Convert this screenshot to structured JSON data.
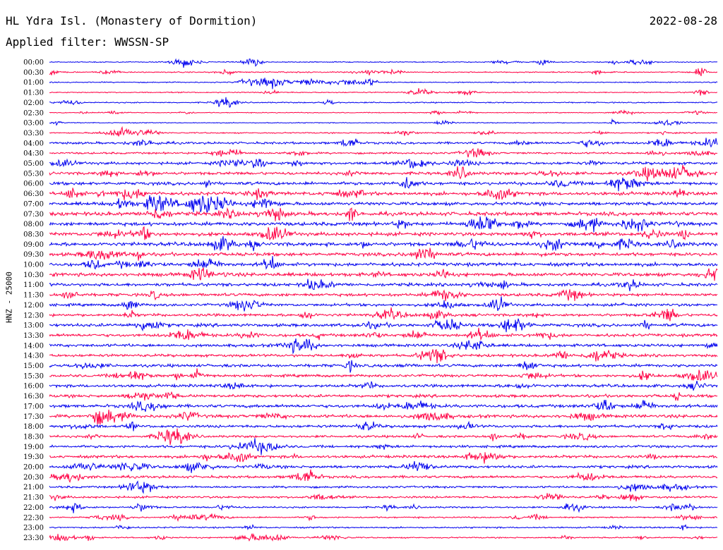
{
  "header": {
    "title": "HL Ydra Isl. (Monastery of Dormition)",
    "date": "2022-08-28",
    "filter": "Applied filter: WWSSN-SP"
  },
  "colors": {
    "trace_a": "#0000ee",
    "trace_b": "#ff0044"
  },
  "chart_data": {
    "type": "line",
    "title": "HL Ydra Isl. (Monastery of Dormition)",
    "subtitle": "Applied filter: WWSSN-SP",
    "ylabel": "HNZ - 25000",
    "rows": [
      "00:00",
      "00:30",
      "01:00",
      "01:30",
      "02:00",
      "02:30",
      "03:00",
      "03:30",
      "04:00",
      "04:30",
      "05:00",
      "05:30",
      "06:00",
      "06:30",
      "07:00",
      "07:30",
      "08:00",
      "08:30",
      "09:00",
      "09:30",
      "10:00",
      "10:30",
      "11:00",
      "11:30",
      "12:00",
      "12:30",
      "13:00",
      "13:30",
      "14:00",
      "14:30",
      "15:00",
      "15:30",
      "16:00",
      "16:30",
      "17:00",
      "17:30",
      "18:00",
      "18:30",
      "19:00",
      "19:30",
      "20:00",
      "20:30",
      "21:00",
      "21:30",
      "22:00",
      "22:30",
      "23:00",
      "23:30"
    ],
    "row_noise": [
      0.9,
      1.1,
      1.0,
      1.0,
      1.1,
      0.8,
      0.8,
      1.2,
      2.2,
      1.8,
      2.6,
      2.8,
      3.0,
      3.2,
      3.2,
      3.6,
      3.4,
      3.4,
      3.5,
      3.2,
      3.3,
      3.4,
      3.0,
      2.8,
      2.6,
      2.6,
      3.0,
      2.8,
      2.8,
      2.6,
      2.8,
      2.6,
      2.8,
      2.8,
      3.0,
      3.0,
      2.6,
      2.2,
      2.4,
      2.6,
      2.6,
      2.4,
      2.0,
      2.0,
      1.6,
      1.4,
      1.4,
      1.2
    ],
    "grid": false
  }
}
